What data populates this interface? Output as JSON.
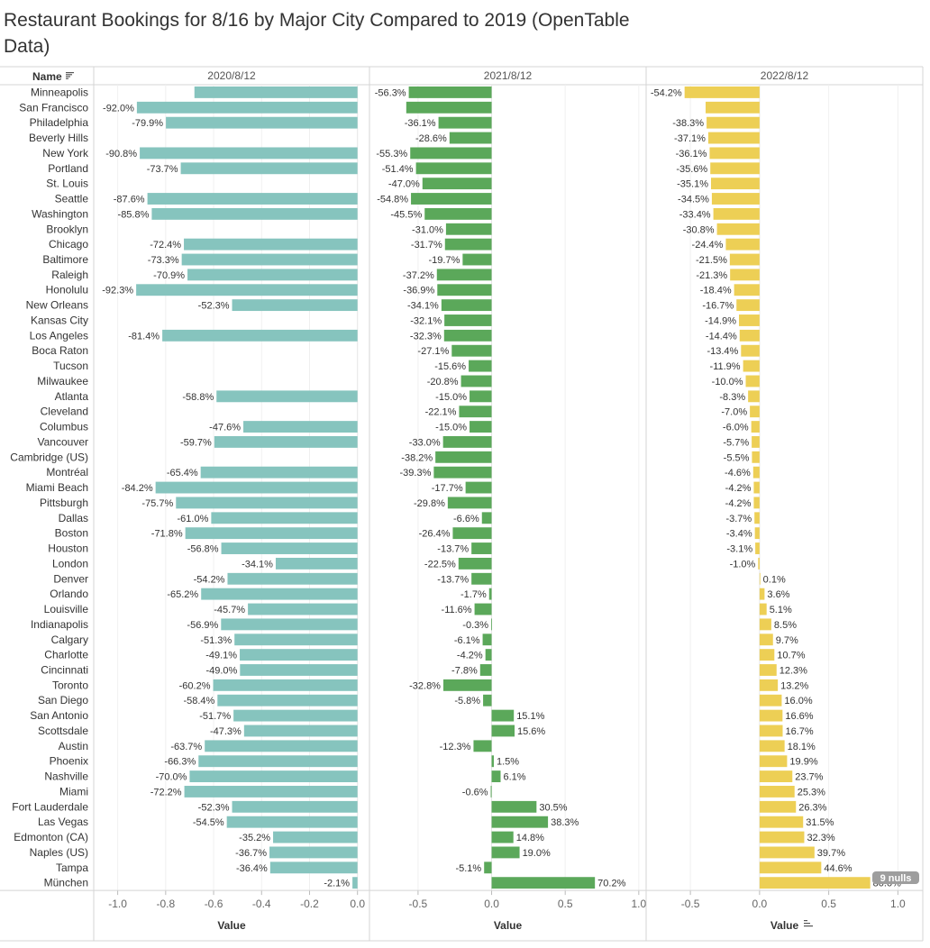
{
  "title": "Restaurant Bookings for 8/16 by Major City Compared to 2019 (OpenTable Data)",
  "chart_data": {
    "type": "bar",
    "orientation": "horizontal",
    "row_header": "Name",
    "categories": [
      "Minneapolis",
      "San Francisco",
      "Philadelphia",
      "Beverly Hills",
      "New York",
      "Portland",
      "St. Louis",
      "Seattle",
      "Washington",
      "Brooklyn",
      "Chicago",
      "Baltimore",
      "Raleigh",
      "Honolulu",
      "New Orleans",
      "Kansas City",
      "Los Angeles",
      "Boca Raton",
      "Tucson",
      "Milwaukee",
      "Atlanta",
      "Cleveland",
      "Columbus",
      "Vancouver",
      "Cambridge (US)",
      "Montréal",
      "Miami Beach",
      "Pittsburgh",
      "Dallas",
      "Boston",
      "Houston",
      "London",
      "Denver",
      "Orlando",
      "Louisville",
      "Indianapolis",
      "Calgary",
      "Charlotte",
      "Cincinnati",
      "Toronto",
      "San Diego",
      "San Antonio",
      "Scottsdale",
      "Austin",
      "Phoenix",
      "Nashville",
      "Miami",
      "Fort Lauderdale",
      "Las Vegas",
      "Edmonton (CA)",
      "Naples (US)",
      "Tampa",
      "München"
    ],
    "series": [
      {
        "name": "2020/8/12",
        "color": "#86c4be",
        "xlim": [
          -1.1,
          0.05
        ],
        "ticks": [
          -1.0,
          -0.8,
          -0.6,
          -0.4,
          -0.2,
          0.0
        ],
        "tick_labels": [
          "-1.0",
          "-0.8",
          "-0.6",
          "-0.4",
          "-0.2",
          "0.0"
        ],
        "xlabel": "Value",
        "values": [
          -0.68,
          -0.92,
          -0.799,
          null,
          -0.908,
          -0.737,
          null,
          -0.876,
          -0.858,
          null,
          -0.724,
          -0.733,
          -0.709,
          -0.923,
          -0.523,
          null,
          -0.814,
          null,
          null,
          null,
          -0.588,
          null,
          -0.476,
          -0.597,
          null,
          -0.654,
          -0.842,
          -0.757,
          -0.61,
          -0.718,
          -0.568,
          -0.341,
          -0.542,
          -0.652,
          -0.457,
          -0.569,
          -0.513,
          -0.491,
          -0.49,
          -0.602,
          -0.584,
          -0.517,
          -0.473,
          -0.637,
          -0.663,
          -0.7,
          -0.722,
          -0.523,
          -0.545,
          -0.352,
          -0.367,
          -0.364,
          -0.021
        ],
        "labels": [
          "",
          "-92.0%",
          "-79.9%",
          "",
          "-90.8%",
          "-73.7%",
          "",
          "-87.6%",
          "-85.8%",
          "",
          "-72.4%",
          "-73.3%",
          "-70.9%",
          "-92.3%",
          "-52.3%",
          "",
          "-81.4%",
          "",
          "",
          "",
          "-58.8%",
          "",
          "-47.6%",
          "-59.7%",
          "",
          "-65.4%",
          "-84.2%",
          "-75.7%",
          "-61.0%",
          "-71.8%",
          "-56.8%",
          "-34.1%",
          "-54.2%",
          "-65.2%",
          "-45.7%",
          "-56.9%",
          "-51.3%",
          "-49.1%",
          "-49.0%",
          "-60.2%",
          "-58.4%",
          "-51.7%",
          "-47.3%",
          "-63.7%",
          "-66.3%",
          "-70.0%",
          "-72.2%",
          "-52.3%",
          "-54.5%",
          "-35.2%",
          "-36.7%",
          "-36.4%",
          "-2.1%"
        ]
      },
      {
        "name": "2021/8/12",
        "color": "#5ba85a",
        "xlim": [
          -0.83,
          1.05
        ],
        "ticks": [
          -0.5,
          0.0,
          0.5,
          1.0
        ],
        "tick_labels": [
          "-0.5",
          "0.0",
          "0.5",
          "1.0"
        ],
        "xlabel": "Value",
        "values": [
          -0.563,
          -0.58,
          -0.361,
          -0.286,
          -0.553,
          -0.514,
          -0.47,
          -0.548,
          -0.455,
          -0.31,
          -0.317,
          -0.197,
          -0.372,
          -0.369,
          -0.341,
          -0.321,
          -0.323,
          -0.271,
          -0.156,
          -0.208,
          -0.15,
          -0.221,
          -0.15,
          -0.33,
          -0.382,
          -0.393,
          -0.177,
          -0.298,
          -0.066,
          -0.264,
          -0.137,
          -0.225,
          -0.137,
          -0.017,
          -0.116,
          -0.003,
          -0.061,
          -0.042,
          -0.078,
          -0.328,
          -0.058,
          0.151,
          0.156,
          -0.123,
          0.015,
          0.061,
          -0.006,
          0.305,
          0.383,
          0.148,
          0.19,
          -0.051,
          0.702
        ],
        "labels": [
          "-56.3%",
          "",
          "-36.1%",
          "-28.6%",
          "-55.3%",
          "-51.4%",
          "-47.0%",
          "-54.8%",
          "-45.5%",
          "-31.0%",
          "-31.7%",
          "-19.7%",
          "-37.2%",
          "-36.9%",
          "-34.1%",
          "-32.1%",
          "-32.3%",
          "-27.1%",
          "-15.6%",
          "-20.8%",
          "-15.0%",
          "-22.1%",
          "-15.0%",
          "-33.0%",
          "-38.2%",
          "-39.3%",
          "-17.7%",
          "-29.8%",
          "-6.6%",
          "-26.4%",
          "-13.7%",
          "-22.5%",
          "-13.7%",
          "-1.7%",
          "-11.6%",
          "-0.3%",
          "-6.1%",
          "-4.2%",
          "-7.8%",
          "-32.8%",
          "-5.8%",
          "15.1%",
          "15.6%",
          "-12.3%",
          "1.5%",
          "6.1%",
          "-0.6%",
          "30.5%",
          "38.3%",
          "14.8%",
          "19.0%",
          "-5.1%",
          "70.2%"
        ]
      },
      {
        "name": "2022/8/12",
        "color": "#edcf55",
        "xlim": [
          -0.82,
          1.18
        ],
        "ticks": [
          -0.5,
          0.0,
          0.5,
          1.0
        ],
        "tick_labels": [
          "-0.5",
          "0.0",
          "0.5",
          "1.0"
        ],
        "xlabel": "Value",
        "values": [
          -0.542,
          -0.39,
          -0.383,
          -0.371,
          -0.361,
          -0.356,
          -0.351,
          -0.345,
          -0.334,
          -0.308,
          -0.244,
          -0.215,
          -0.213,
          -0.184,
          -0.167,
          -0.149,
          -0.144,
          -0.134,
          -0.119,
          -0.1,
          -0.083,
          -0.07,
          -0.06,
          -0.057,
          -0.055,
          -0.046,
          -0.042,
          -0.042,
          -0.037,
          -0.034,
          -0.031,
          -0.01,
          0.001,
          0.036,
          0.051,
          0.085,
          0.097,
          0.107,
          0.123,
          0.132,
          0.16,
          0.166,
          0.167,
          0.181,
          0.199,
          0.237,
          0.253,
          0.263,
          0.315,
          0.323,
          0.397,
          0.446,
          0.8
        ],
        "labels": [
          "-54.2%",
          "",
          "-38.3%",
          "-37.1%",
          "-36.1%",
          "-35.6%",
          "-35.1%",
          "-34.5%",
          "-33.4%",
          "-30.8%",
          "-24.4%",
          "-21.5%",
          "-21.3%",
          "-18.4%",
          "-16.7%",
          "-14.9%",
          "-14.4%",
          "-13.4%",
          "-11.9%",
          "-10.0%",
          "-8.3%",
          "-7.0%",
          "-6.0%",
          "-5.7%",
          "-5.5%",
          "-4.6%",
          "-4.2%",
          "-4.2%",
          "-3.7%",
          "-3.4%",
          "-3.1%",
          "-1.0%",
          "0.1%",
          "3.6%",
          "5.1%",
          "8.5%",
          "9.7%",
          "10.7%",
          "12.3%",
          "13.2%",
          "16.0%",
          "16.6%",
          "16.7%",
          "18.1%",
          "19.9%",
          "23.7%",
          "25.3%",
          "26.3%",
          "31.5%",
          "32.3%",
          "39.7%",
          "44.6%",
          "80.0%"
        ]
      }
    ],
    "nulls_badge": "9 nulls"
  }
}
